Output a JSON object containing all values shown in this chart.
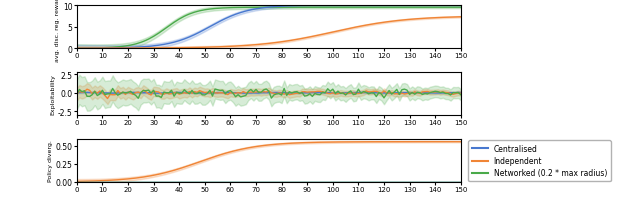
{
  "x_max": 150,
  "x_ticks": [
    0,
    10,
    20,
    30,
    40,
    50,
    60,
    70,
    80,
    90,
    100,
    110,
    120,
    130,
    140,
    150
  ],
  "colors": {
    "centralised": "#4878cf",
    "independent": "#f08536",
    "networked": "#4aaa4a"
  },
  "subplot1": {
    "ylabel": "avg. disc. reg. reward",
    "ylim": [
      0,
      10.0
    ],
    "yticks": [
      0,
      5,
      10
    ]
  },
  "subplot2": {
    "ylabel": "Exploitability",
    "ylim": [
      -3.0,
      2.8
    ],
    "yticks": [
      -2.5,
      0.0,
      2.5
    ]
  },
  "subplot3": {
    "ylabel": "Policy diverg.",
    "ylim": [
      0,
      0.6
    ],
    "yticks": [
      0.0,
      0.25,
      0.5
    ]
  },
  "legend": {
    "centralised": "Centralised",
    "independent": "Independent",
    "networked": "Networked (0.2 * max radius)"
  },
  "figsize": [
    6.4,
    2.01
  ],
  "dpi": 100
}
